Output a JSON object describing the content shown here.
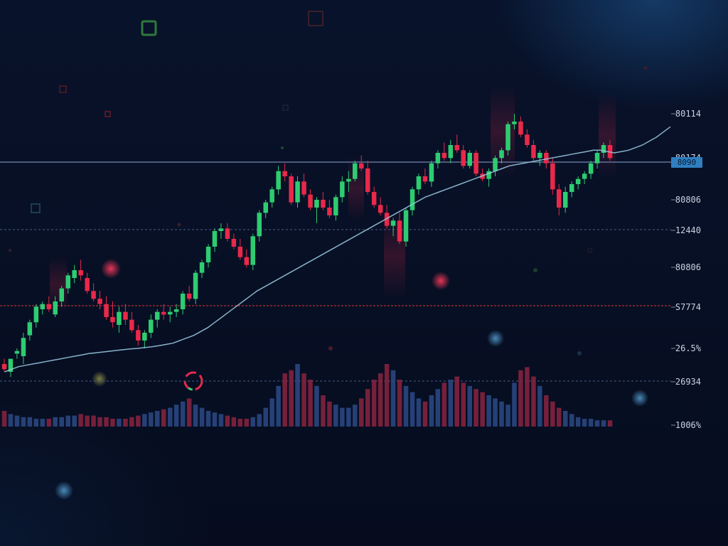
{
  "colors": {
    "background": "#070f24",
    "bullish": "#2ecc71",
    "bearish": "#e8294a",
    "moving_average": "#9ecfe6",
    "price_badge": "#2f7fc1",
    "grid_dashed": "#4a5f86",
    "support_line": "#e03a3a",
    "volume_up": "#2b4a86",
    "volume_down": "#8a2340"
  },
  "price_axis": {
    "labels": [
      "80114",
      "80174",
      "80806",
      "12440",
      "80806",
      "S7774",
      "26.5%",
      "26934",
      "1006%"
    ]
  },
  "price_badge": {
    "label": "8090"
  },
  "chart_data": {
    "type": "candlestick",
    "title": "",
    "xlabel": "",
    "ylabel": "",
    "ylim": [
      0,
      100
    ],
    "grid": false,
    "candles": [
      {
        "o": 14,
        "h": 16,
        "l": 11,
        "c": 12
      },
      {
        "o": 11,
        "h": 16,
        "l": 9,
        "c": 16
      },
      {
        "o": 18,
        "h": 20,
        "l": 16,
        "c": 19
      },
      {
        "o": 17,
        "h": 26,
        "l": 14,
        "c": 24
      },
      {
        "o": 25,
        "h": 31,
        "l": 23,
        "c": 30
      },
      {
        "o": 30,
        "h": 37,
        "l": 28,
        "c": 36
      },
      {
        "o": 35,
        "h": 38,
        "l": 33,
        "c": 37
      },
      {
        "o": 37,
        "h": 40,
        "l": 34,
        "c": 35
      },
      {
        "o": 33,
        "h": 40,
        "l": 32,
        "c": 38
      },
      {
        "o": 38,
        "h": 44,
        "l": 36,
        "c": 43
      },
      {
        "o": 43,
        "h": 49,
        "l": 41,
        "c": 48
      },
      {
        "o": 47,
        "h": 52,
        "l": 45,
        "c": 50
      },
      {
        "o": 50,
        "h": 54,
        "l": 46,
        "c": 48
      },
      {
        "o": 47,
        "h": 49,
        "l": 41,
        "c": 42
      },
      {
        "o": 42,
        "h": 45,
        "l": 38,
        "c": 39
      },
      {
        "o": 39,
        "h": 42,
        "l": 35,
        "c": 37
      },
      {
        "o": 37,
        "h": 40,
        "l": 31,
        "c": 32
      },
      {
        "o": 32,
        "h": 38,
        "l": 28,
        "c": 30
      },
      {
        "o": 29,
        "h": 36,
        "l": 26,
        "c": 34
      },
      {
        "o": 34,
        "h": 37,
        "l": 29,
        "c": 31
      },
      {
        "o": 31,
        "h": 34,
        "l": 26,
        "c": 27
      },
      {
        "o": 27,
        "h": 29,
        "l": 21,
        "c": 23
      },
      {
        "o": 23,
        "h": 27,
        "l": 20,
        "c": 26
      },
      {
        "o": 26,
        "h": 33,
        "l": 24,
        "c": 31
      },
      {
        "o": 31,
        "h": 35,
        "l": 28,
        "c": 34
      },
      {
        "o": 34,
        "h": 37,
        "l": 31,
        "c": 33
      },
      {
        "o": 33,
        "h": 36,
        "l": 30,
        "c": 34
      },
      {
        "o": 34,
        "h": 37,
        "l": 32,
        "c": 35
      },
      {
        "o": 35,
        "h": 42,
        "l": 33,
        "c": 41
      },
      {
        "o": 41,
        "h": 44,
        "l": 38,
        "c": 39
      },
      {
        "o": 39,
        "h": 50,
        "l": 37,
        "c": 49
      },
      {
        "o": 49,
        "h": 54,
        "l": 47,
        "c": 53
      },
      {
        "o": 53,
        "h": 60,
        "l": 51,
        "c": 59
      },
      {
        "o": 59,
        "h": 66,
        "l": 57,
        "c": 65
      },
      {
        "o": 65,
        "h": 68,
        "l": 62,
        "c": 66
      },
      {
        "o": 66,
        "h": 68,
        "l": 61,
        "c": 62
      },
      {
        "o": 62,
        "h": 64,
        "l": 58,
        "c": 59
      },
      {
        "o": 59,
        "h": 62,
        "l": 54,
        "c": 55
      },
      {
        "o": 55,
        "h": 58,
        "l": 51,
        "c": 52
      },
      {
        "o": 52,
        "h": 64,
        "l": 50,
        "c": 63
      },
      {
        "o": 63,
        "h": 73,
        "l": 61,
        "c": 72
      },
      {
        "o": 72,
        "h": 77,
        "l": 70,
        "c": 76
      },
      {
        "o": 76,
        "h": 82,
        "l": 74,
        "c": 81
      },
      {
        "o": 81,
        "h": 90,
        "l": 79,
        "c": 88
      },
      {
        "o": 88,
        "h": 91,
        "l": 84,
        "c": 86
      },
      {
        "o": 86,
        "h": 87,
        "l": 75,
        "c": 76
      },
      {
        "o": 76,
        "h": 86,
        "l": 74,
        "c": 84
      },
      {
        "o": 84,
        "h": 87,
        "l": 78,
        "c": 79
      },
      {
        "o": 79,
        "h": 81,
        "l": 73,
        "c": 74
      },
      {
        "o": 74,
        "h": 78,
        "l": 68,
        "c": 77
      },
      {
        "o": 77,
        "h": 80,
        "l": 73,
        "c": 74
      },
      {
        "o": 74,
        "h": 77,
        "l": 70,
        "c": 71
      },
      {
        "o": 71,
        "h": 79,
        "l": 69,
        "c": 78
      },
      {
        "o": 78,
        "h": 86,
        "l": 76,
        "c": 84
      },
      {
        "o": 84,
        "h": 88,
        "l": 80,
        "c": 85
      },
      {
        "o": 85,
        "h": 92,
        "l": 84,
        "c": 91
      },
      {
        "o": 91,
        "h": 94,
        "l": 88,
        "c": 89
      },
      {
        "o": 89,
        "h": 92,
        "l": 79,
        "c": 80
      },
      {
        "o": 80,
        "h": 82,
        "l": 74,
        "c": 75
      },
      {
        "o": 75,
        "h": 78,
        "l": 71,
        "c": 72
      },
      {
        "o": 72,
        "h": 75,
        "l": 66,
        "c": 67
      },
      {
        "o": 67,
        "h": 70,
        "l": 63,
        "c": 69
      },
      {
        "o": 69,
        "h": 72,
        "l": 60,
        "c": 61
      },
      {
        "o": 61,
        "h": 74,
        "l": 59,
        "c": 73
      },
      {
        "o": 73,
        "h": 82,
        "l": 71,
        "c": 81
      },
      {
        "o": 81,
        "h": 87,
        "l": 79,
        "c": 86
      },
      {
        "o": 86,
        "h": 89,
        "l": 83,
        "c": 84
      },
      {
        "o": 84,
        "h": 92,
        "l": 82,
        "c": 91
      },
      {
        "o": 91,
        "h": 96,
        "l": 89,
        "c": 95
      },
      {
        "o": 95,
        "h": 99,
        "l": 92,
        "c": 93
      },
      {
        "o": 93,
        "h": 100,
        "l": 91,
        "c": 98
      },
      {
        "o": 98,
        "h": 102,
        "l": 95,
        "c": 96
      },
      {
        "o": 96,
        "h": 98,
        "l": 89,
        "c": 90
      },
      {
        "o": 90,
        "h": 96,
        "l": 89,
        "c": 95
      },
      {
        "o": 95,
        "h": 96,
        "l": 86,
        "c": 87
      },
      {
        "o": 87,
        "h": 89,
        "l": 84,
        "c": 85
      },
      {
        "o": 85,
        "h": 89,
        "l": 82,
        "c": 88
      },
      {
        "o": 88,
        "h": 94,
        "l": 86,
        "c": 93
      },
      {
        "o": 93,
        "h": 97,
        "l": 91,
        "c": 96
      },
      {
        "o": 96,
        "h": 107,
        "l": 94,
        "c": 106
      },
      {
        "o": 106,
        "h": 110,
        "l": 104,
        "c": 107
      },
      {
        "o": 107,
        "h": 109,
        "l": 101,
        "c": 102
      },
      {
        "o": 102,
        "h": 104,
        "l": 97,
        "c": 98
      },
      {
        "o": 98,
        "h": 100,
        "l": 92,
        "c": 93
      },
      {
        "o": 93,
        "h": 96,
        "l": 90,
        "c": 95
      },
      {
        "o": 95,
        "h": 96,
        "l": 89,
        "c": 91
      },
      {
        "o": 91,
        "h": 93,
        "l": 79,
        "c": 81
      },
      {
        "o": 81,
        "h": 83,
        "l": 71,
        "c": 74
      },
      {
        "o": 74,
        "h": 82,
        "l": 72,
        "c": 80
      },
      {
        "o": 80,
        "h": 84,
        "l": 78,
        "c": 83
      },
      {
        "o": 83,
        "h": 86,
        "l": 81,
        "c": 85
      },
      {
        "o": 85,
        "h": 88,
        "l": 83,
        "c": 87
      },
      {
        "o": 87,
        "h": 92,
        "l": 85,
        "c": 91
      },
      {
        "o": 91,
        "h": 96,
        "l": 89,
        "c": 95
      },
      {
        "o": 95,
        "h": 99,
        "l": 93,
        "c": 98
      },
      {
        "o": 98,
        "h": 100,
        "l": 92,
        "c": 93
      }
    ],
    "moving_average": [
      11,
      12,
      13,
      13.5,
      14,
      14.5,
      15,
      15.5,
      16,
      16.5,
      17,
      17.5,
      18,
      18.3,
      18.6,
      18.9,
      19.2,
      19.5,
      19.8,
      20,
      20.3,
      20.6,
      21,
      21.5,
      22,
      23,
      24,
      25,
      26.5,
      28,
      30,
      32,
      34,
      36,
      38,
      40,
      42,
      43.5,
      45,
      46.5,
      48,
      49.5,
      51,
      52.5,
      54,
      55.5,
      57,
      58.5,
      60,
      61.5,
      63,
      64.5,
      66,
      67.5,
      69,
      70.5,
      72,
      73.5,
      75,
      76.5,
      78,
      79,
      80,
      81,
      82,
      83,
      84,
      85,
      86,
      87,
      88,
      89,
      90,
      90.5,
      91,
      91.5,
      92,
      92.5,
      93,
      93.5,
      94,
      94.5,
      95,
      95.5,
      96,
      96,
      95.5,
      95,
      95.5,
      96,
      97,
      98,
      99.5,
      101,
      103,
      105
    ],
    "volume": [
      10,
      8,
      7,
      6,
      6,
      5,
      5,
      5,
      6,
      6,
      7,
      7,
      8,
      7,
      7,
      6,
      6,
      5,
      5,
      5,
      6,
      7,
      8,
      9,
      10,
      11,
      12,
      14,
      16,
      18,
      14,
      12,
      10,
      9,
      8,
      7,
      6,
      5,
      5,
      6,
      8,
      12,
      18,
      26,
      34,
      36,
      40,
      34,
      30,
      26,
      20,
      16,
      14,
      12,
      12,
      14,
      18,
      24,
      30,
      34,
      40,
      36,
      30,
      26,
      22,
      18,
      16,
      20,
      24,
      28,
      30,
      32,
      28,
      26,
      24,
      22,
      20,
      18,
      16,
      14,
      28,
      36,
      38,
      32,
      26,
      20,
      16,
      12,
      10,
      8,
      6,
      5,
      5,
      4,
      4,
      4
    ],
    "horizontal_levels": [
      {
        "kind": "price-line",
        "label": "8090"
      },
      {
        "kind": "dashed",
        "label": "12440"
      },
      {
        "kind": "support",
        "label": "S7774"
      },
      {
        "kind": "dashed",
        "label": "26934"
      }
    ]
  }
}
